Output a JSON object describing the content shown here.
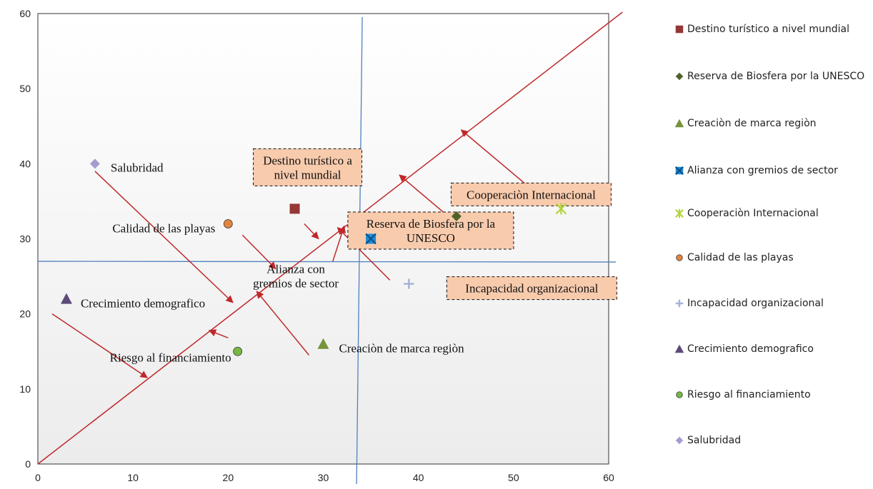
{
  "chart_data": {
    "type": "scatter",
    "title": "",
    "xlabel": "",
    "ylabel": "",
    "xlim": [
      0,
      60
    ],
    "ylim": [
      0,
      60
    ],
    "xticks": [
      0,
      10,
      20,
      30,
      40,
      50,
      60
    ],
    "yticks": [
      0,
      10,
      20,
      30,
      40,
      50,
      60
    ],
    "grid": false,
    "legend_position": "right",
    "diagonal_line": {
      "from": [
        0,
        0
      ],
      "to": [
        61,
        60
      ],
      "color": "#c0282a"
    },
    "reference_lines": {
      "vertical_x": 33.5,
      "horizontal_y": 27,
      "color": "#4f81bd"
    },
    "series": [
      {
        "name": "Destino turístico a nivel mundial",
        "marker": "square",
        "color": "#953735",
        "x": 27,
        "y": 34,
        "label": {
          "text": [
            "Destino turístico a",
            "nivel mundial"
          ],
          "boxed": true
        }
      },
      {
        "name": "Reserva de Biosfera por la UNESCO",
        "marker": "diamond",
        "color": "#4f6228",
        "x": 44,
        "y": 33,
        "label": {
          "text": [
            "Reserva de Biosfera por la",
            "UNESCO"
          ],
          "boxed": true
        }
      },
      {
        "name": "Creaciòn de marca regiòn",
        "marker": "triangle",
        "color": "#77933c",
        "x": 30,
        "y": 16,
        "label": {
          "text": [
            "Creaciòn de marca regiòn"
          ],
          "boxed": false
        }
      },
      {
        "name": "Alianza con gremios de sector",
        "marker": "x-square",
        "color": "#1f8ad6",
        "x": 35,
        "y": 30,
        "label": {
          "text": [
            "Alianza con",
            "gremios de sector"
          ],
          "boxed": false
        }
      },
      {
        "name": "Cooperaciòn Internacional",
        "marker": "star",
        "color": "#b3d33a",
        "x": 55,
        "y": 34,
        "label": {
          "text": [
            "Cooperaciòn Internacional"
          ],
          "boxed": true
        }
      },
      {
        "name": "Calidad de las playas",
        "marker": "circle",
        "color": "#e6843c",
        "x": 20,
        "y": 32,
        "label": {
          "text": [
            "Calidad de las playas"
          ],
          "boxed": false
        }
      },
      {
        "name": "Incapacidad organizacional",
        "marker": "plus",
        "color": "#a6b3d6",
        "x": 39,
        "y": 24,
        "label": {
          "text": [
            "Incapacidad organizacional"
          ],
          "boxed": true
        }
      },
      {
        "name": "Crecimiento demografico",
        "marker": "triangle",
        "color": "#5f497a",
        "x": 3,
        "y": 22,
        "label": {
          "text": [
            "Crecimiento demografico"
          ],
          "boxed": false
        }
      },
      {
        "name": "Riesgo al financiamiento",
        "marker": "circle",
        "color": "#77b843",
        "x": 21,
        "y": 15,
        "label": {
          "text": [
            "Riesgo al financiamiento"
          ],
          "boxed": false
        }
      },
      {
        "name": "Salubridad",
        "marker": "diamond",
        "color": "#a69bd1",
        "x": 6,
        "y": 40,
        "label": {
          "text": [
            "Salubridad"
          ],
          "boxed": false
        }
      }
    ],
    "arrows": [
      {
        "from": [
          6,
          39
        ],
        "to": [
          20.5,
          21.5
        ]
      },
      {
        "from": [
          1.5,
          20
        ],
        "to": [
          11.5,
          11.5
        ]
      },
      {
        "from": [
          21.5,
          30.5
        ],
        "to": [
          25,
          26
        ]
      },
      {
        "from": [
          28,
          32
        ],
        "to": [
          29.5,
          30
        ]
      },
      {
        "from": [
          31,
          27
        ],
        "to": [
          32.2,
          31.7
        ]
      },
      {
        "from": [
          20,
          16.8
        ],
        "to": [
          18,
          17.8
        ]
      },
      {
        "from": [
          28.5,
          14.5
        ],
        "to": [
          23,
          23
        ]
      },
      {
        "from": [
          37,
          24.5
        ],
        "to": [
          31.5,
          31.5
        ]
      },
      {
        "from": [
          45,
          31
        ],
        "to": [
          38,
          38.5
        ]
      },
      {
        "from": [
          52,
          36.5
        ],
        "to": [
          44.5,
          44.5
        ]
      }
    ]
  },
  "colors": {
    "line_red": "#c0282a",
    "line_blue": "#4f81bd",
    "box_fill": "#f8cbad"
  }
}
